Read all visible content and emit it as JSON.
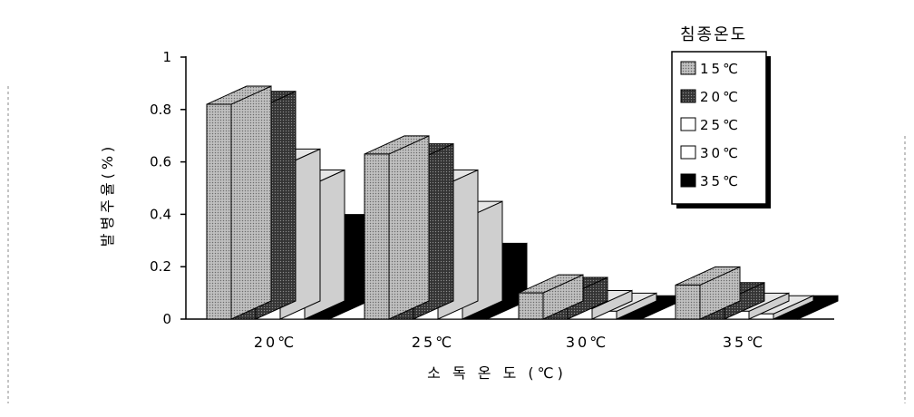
{
  "chart_data": {
    "type": "bar",
    "title": "",
    "xlabel": "소 독 온 도 (℃)",
    "ylabel": "발병주율(%)",
    "ylim": [
      0,
      1
    ],
    "yticks": [
      "0",
      "0.2",
      "0.4",
      "0.6",
      "0.8",
      "1"
    ],
    "categories": [
      "20℃",
      "25℃",
      "30℃",
      "35℃"
    ],
    "legend_title": "침종온도",
    "legend_position": "top-right",
    "series": [
      {
        "name": "15℃",
        "values": [
          0.82,
          0.63,
          0.1,
          0.13
        ],
        "color": "#a8a8a8",
        "pattern": "dots"
      },
      {
        "name": "20℃",
        "values": [
          0.8,
          0.6,
          0.09,
          0.07
        ],
        "color": "#4a4a4a",
        "pattern": "dark-dots"
      },
      {
        "name": "25℃",
        "values": [
          0.58,
          0.5,
          0.04,
          0.03
        ],
        "color": "#ffffff",
        "pattern": "none"
      },
      {
        "name": "30℃",
        "values": [
          0.5,
          0.38,
          0.03,
          0.02
        ],
        "color": "#ffffff",
        "pattern": "none"
      },
      {
        "name": "35℃",
        "values": [
          0.33,
          0.22,
          0.02,
          0.02
        ],
        "color": "#000000",
        "pattern": "none"
      }
    ]
  }
}
